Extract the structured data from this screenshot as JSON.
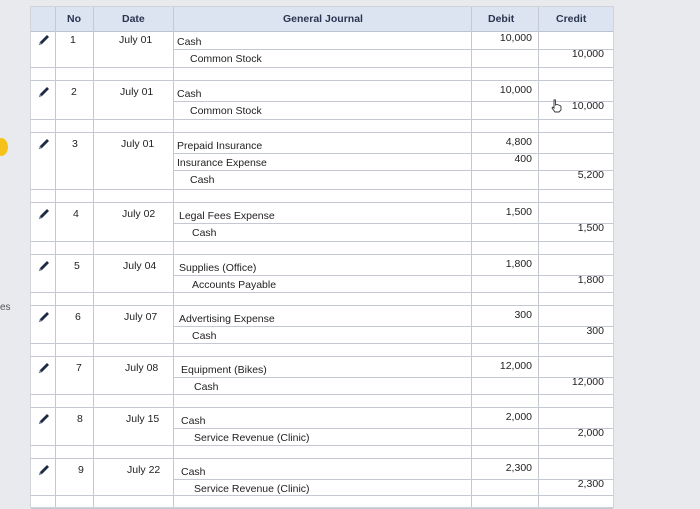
{
  "side_label": "es",
  "headers": {
    "no": "No",
    "date": "Date",
    "journal": "General Journal",
    "debit": "Debit",
    "credit": "Credit"
  },
  "entries": [
    {
      "no": "1",
      "date": "July 01",
      "lines": [
        {
          "account": "Cash",
          "debit": "10,000",
          "credit": ""
        },
        {
          "account": "Common Stock",
          "debit": "",
          "credit": "10,000"
        }
      ]
    },
    {
      "no": "2",
      "date": "July 01",
      "lines": [
        {
          "account": "Cash",
          "debit": "10,000",
          "credit": ""
        },
        {
          "account": "Common Stock",
          "debit": "",
          "credit": "10,000"
        }
      ]
    },
    {
      "no": "3",
      "date": "July 01",
      "lines": [
        {
          "account": "Prepaid Insurance",
          "debit": "4,800",
          "credit": ""
        },
        {
          "account": "Insurance Expense",
          "debit": "400",
          "credit": ""
        },
        {
          "account": "Cash",
          "debit": "",
          "credit": "5,200"
        }
      ]
    },
    {
      "no": "4",
      "date": "July 02",
      "lines": [
        {
          "account": "Legal Fees Expense",
          "debit": "1,500",
          "credit": ""
        },
        {
          "account": "Cash",
          "debit": "",
          "credit": "1,500"
        }
      ]
    },
    {
      "no": "5",
      "date": "July 04",
      "lines": [
        {
          "account": "Supplies (Office)",
          "debit": "1,800",
          "credit": ""
        },
        {
          "account": "Accounts Payable",
          "debit": "",
          "credit": "1,800"
        }
      ]
    },
    {
      "no": "6",
      "date": "July 07",
      "lines": [
        {
          "account": "Advertising Expense",
          "debit": "300",
          "credit": ""
        },
        {
          "account": "Cash",
          "debit": "",
          "credit": "300"
        }
      ]
    },
    {
      "no": "7",
      "date": "July 08",
      "lines": [
        {
          "account": "Equipment (Bikes)",
          "debit": "12,000",
          "credit": ""
        },
        {
          "account": "Cash",
          "debit": "",
          "credit": "12,000"
        }
      ]
    },
    {
      "no": "8",
      "date": "July 15",
      "lines": [
        {
          "account": "Cash",
          "debit": "2,000",
          "credit": ""
        },
        {
          "account": "Service Revenue (Clinic)",
          "debit": "",
          "credit": "2,000"
        }
      ]
    },
    {
      "no": "9",
      "date": "July 22",
      "lines": [
        {
          "account": "Cash",
          "debit": "2,300",
          "credit": ""
        },
        {
          "account": "Service Revenue (Clinic)",
          "debit": "",
          "credit": "2,300"
        }
      ]
    }
  ]
}
